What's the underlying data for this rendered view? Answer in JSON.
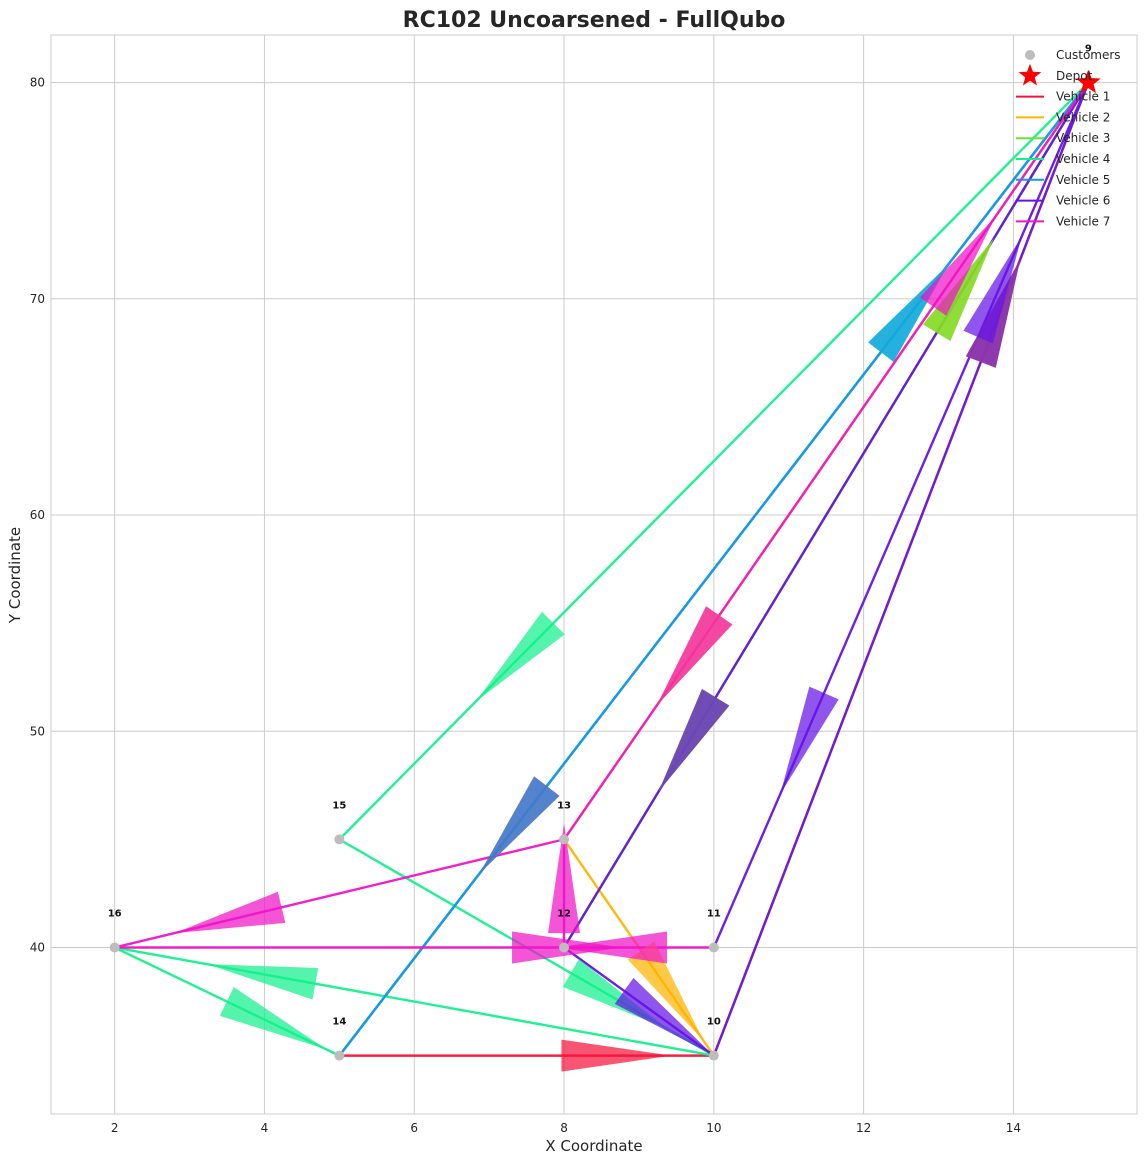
{
  "chart_data": {
    "type": "scatter",
    "title": "RC102 Uncoarsened - FullQubo",
    "xlabel": "X Coordinate",
    "ylabel": "Y Coordinate",
    "xlim": [
      1.15,
      15.65
    ],
    "ylim": [
      32.3,
      82.2
    ],
    "xticks": [
      2,
      4,
      6,
      8,
      10,
      12,
      14
    ],
    "yticks": [
      40,
      50,
      60,
      70,
      80
    ],
    "grid": true,
    "legend_position": "top-right",
    "legend": [
      "Customers",
      "Depot",
      "Vehicle 1",
      "Vehicle 2",
      "Vehicle 3",
      "Vehicle 4",
      "Vehicle 5",
      "Vehicle 6",
      "Vehicle 7"
    ],
    "customers": [
      {
        "id": "9",
        "x": 15,
        "y": 80
      },
      {
        "id": "10",
        "x": 10,
        "y": 35
      },
      {
        "id": "11",
        "x": 10,
        "y": 40
      },
      {
        "id": "12",
        "x": 8,
        "y": 40
      },
      {
        "id": "13",
        "x": 8,
        "y": 45
      },
      {
        "id": "14",
        "x": 5,
        "y": 35
      },
      {
        "id": "15",
        "x": 5,
        "y": 45
      },
      {
        "id": "16",
        "x": 2,
        "y": 40
      }
    ],
    "depot": {
      "x": 15,
      "y": 80
    },
    "series": [
      {
        "name": "Vehicle 1",
        "color": "#f5143c",
        "route": [
          [
            15,
            80
          ],
          [
            5,
            35
          ],
          [
            10,
            35
          ],
          [
            15,
            80
          ]
        ]
      },
      {
        "name": "Vehicle 2",
        "color": "#ffb400",
        "route": [
          [
            15,
            80
          ],
          [
            8,
            40
          ],
          [
            15,
            80
          ],
          [
            8,
            45
          ],
          [
            10,
            35
          ],
          [
            15,
            80
          ]
        ]
      },
      {
        "name": "Vehicle 3",
        "color": "#64e632",
        "route": [
          [
            15,
            80
          ],
          [
            8,
            40
          ],
          [
            15,
            80
          ]
        ]
      },
      {
        "name": "Vehicle 4",
        "color": "#14f08c",
        "route": [
          [
            15,
            80
          ],
          [
            5,
            45
          ],
          [
            10,
            35
          ],
          [
            2,
            40
          ],
          [
            5,
            35
          ],
          [
            15,
            80
          ]
        ]
      },
      {
        "name": "Vehicle 5",
        "color": "#1496f0",
        "route": [
          [
            15,
            80
          ],
          [
            5,
            35
          ],
          [
            15,
            80
          ]
        ]
      },
      {
        "name": "Vehicle 6",
        "color": "#6414e6",
        "route": [
          [
            15,
            80
          ],
          [
            8,
            40
          ],
          [
            10,
            35
          ],
          [
            15,
            80
          ],
          [
            10,
            40
          ],
          [
            15,
            80
          ]
        ]
      },
      {
        "name": "Vehicle 7",
        "color": "#f014c8",
        "route": [
          [
            15,
            80
          ],
          [
            8,
            45
          ],
          [
            2,
            40
          ],
          [
            10,
            40
          ],
          [
            8,
            40
          ],
          [
            8,
            45
          ],
          [
            15,
            80
          ]
        ]
      }
    ]
  }
}
